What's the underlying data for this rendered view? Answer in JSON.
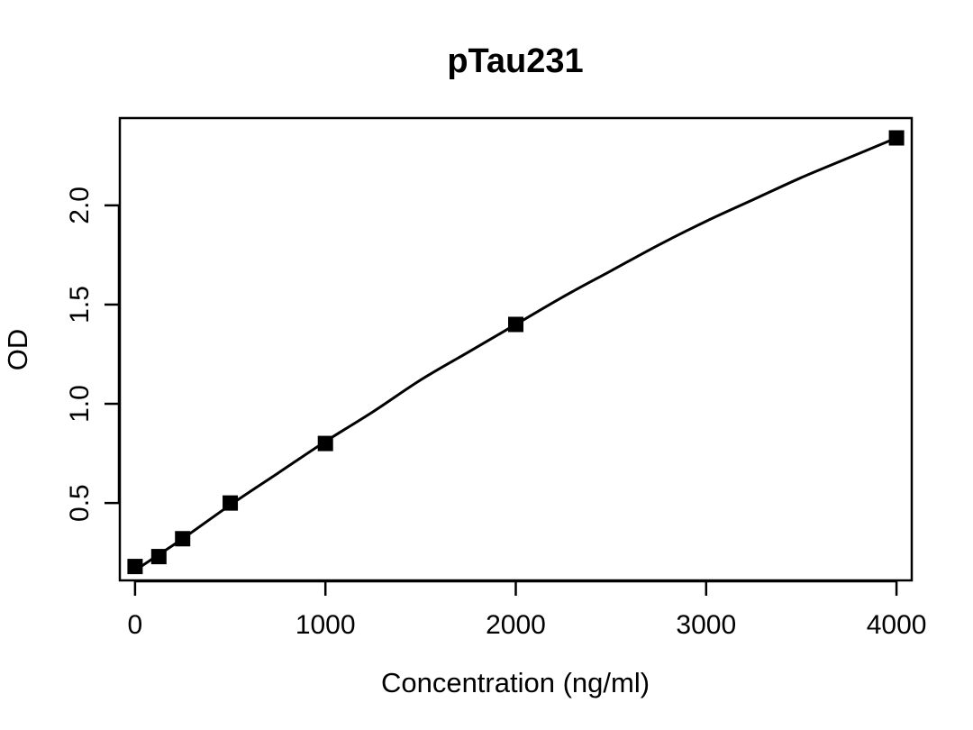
{
  "chart_data": {
    "type": "scatter",
    "title": "pTau231",
    "xlabel": "Concentration (ng/ml)",
    "ylabel": "OD",
    "xlim": [
      -80,
      4080
    ],
    "ylim": [
      0.11,
      2.44
    ],
    "x_ticks": [
      0,
      1000,
      2000,
      3000,
      4000
    ],
    "x_tick_labels": [
      "0",
      "1000",
      "2000",
      "3000",
      "4000"
    ],
    "y_ticks": [
      0.5,
      1.0,
      1.5,
      2.0
    ],
    "y_tick_labels": [
      "0.5",
      "1.0",
      "1.5",
      "2.0"
    ],
    "grid": false,
    "series": [
      {
        "marker": "square",
        "color": "#000000",
        "x": [
          0,
          125,
          250,
          500,
          1000,
          2000,
          4000
        ],
        "y": [
          0.18,
          0.23,
          0.32,
          0.5,
          0.8,
          1.4,
          2.34
        ]
      }
    ],
    "fit_curve": {
      "color": "#000000",
      "x": [
        0,
        125,
        250,
        500,
        750,
        1000,
        1250,
        1500,
        1750,
        2000,
        2250,
        2500,
        2750,
        3000,
        3250,
        3500,
        3750,
        4000
      ],
      "y": [
        0.16,
        0.24,
        0.32,
        0.49,
        0.65,
        0.81,
        0.96,
        1.12,
        1.26,
        1.4,
        1.54,
        1.67,
        1.8,
        1.92,
        2.03,
        2.14,
        2.24,
        2.34
      ]
    }
  }
}
